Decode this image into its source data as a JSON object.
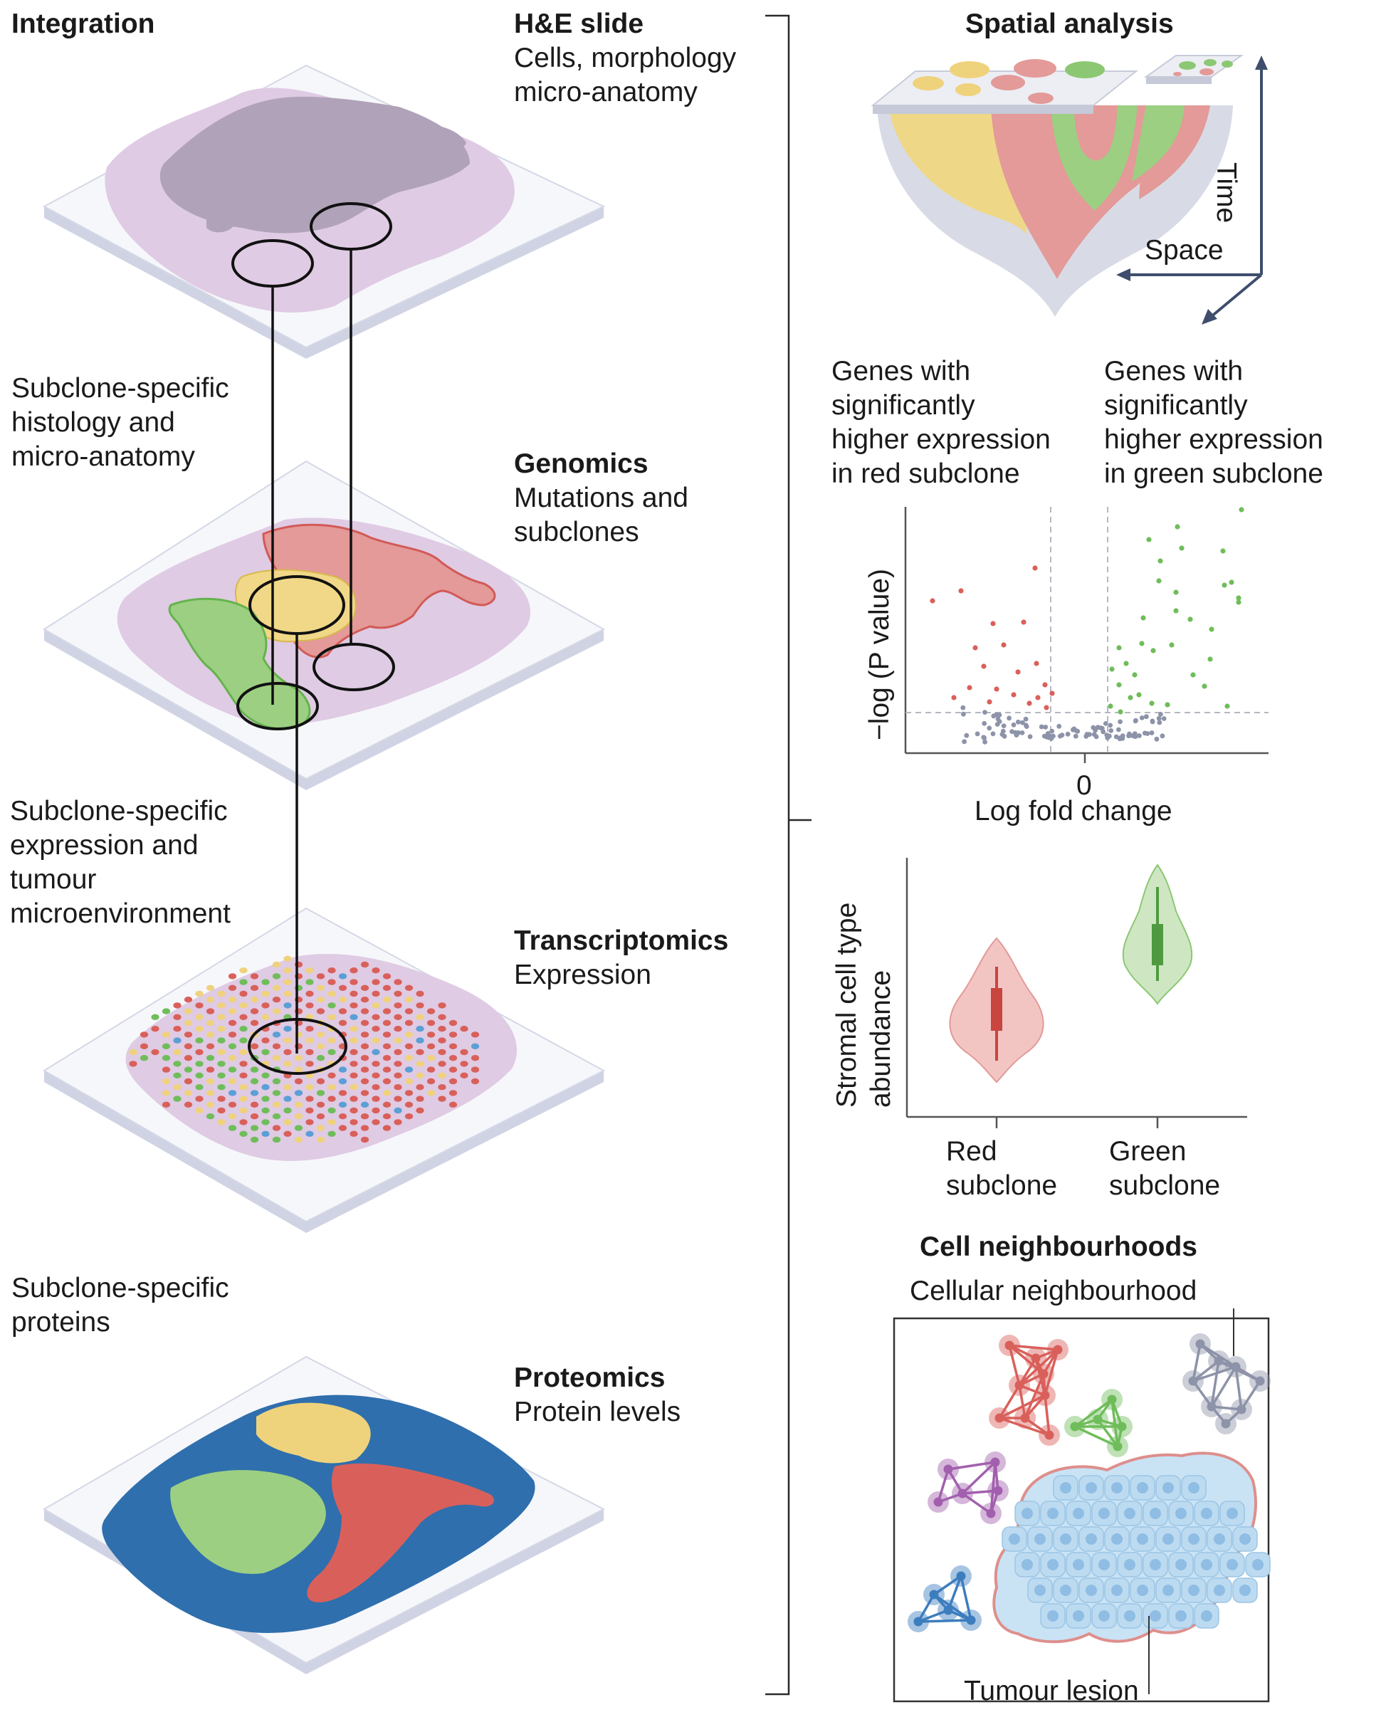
{
  "left": {
    "title": "Integration",
    "note_histology": [
      "Subclone-specific",
      "histology and",
      "micro-anatomy"
    ],
    "note_expression": [
      "Subclone-specific",
      "expression and",
      "tumour",
      "microenvironment"
    ],
    "note_proteins": [
      "Subclone-specific",
      "proteins"
    ]
  },
  "layers": [
    {
      "title": "H&E slide",
      "lines": [
        "Cells, morphology",
        "micro-anatomy"
      ]
    },
    {
      "title": "Genomics",
      "lines": [
        "Mutations and",
        "subclones"
      ]
    },
    {
      "title": "Transcriptomics",
      "lines": [
        "Expression"
      ]
    },
    {
      "title": "Proteomics",
      "lines": [
        "Protein levels"
      ]
    }
  ],
  "spatial": {
    "title": "Spatial analysis",
    "time_label": "Time",
    "space_label": "Space"
  },
  "volcano": {
    "label_left": [
      "Genes with",
      "significantly",
      "higher expression",
      "in red subclone"
    ],
    "label_right": [
      "Genes with",
      "significantly",
      "higher expression",
      "in green subclone"
    ],
    "chart_data": {
      "type": "scatter",
      "xlabel": "Log fold change",
      "ylabel": "−log (P value)",
      "x_ticks": [
        "0"
      ]
    }
  },
  "violin": {
    "chart_data": {
      "type": "violin",
      "categories": [
        "Red subclone",
        "Green subclone"
      ],
      "ylabel": [
        "Stromal cell type",
        "abundance"
      ],
      "category_lines": [
        [
          "Red",
          "subclone"
        ],
        [
          "Green",
          "subclone"
        ]
      ]
    }
  },
  "neighbourhoods": {
    "title": "Cell neighbourhoods",
    "cellular_label": "Cellular neighbourhood",
    "tumour_label": "Tumour lesion"
  },
  "colors": {
    "red": "#d9605a",
    "green": "#6fbd5a",
    "yellow": "#efd27c",
    "purple": "#d9c2dc",
    "blue": "#2f6fad",
    "grey": "#8d93a8",
    "axis": "#3e4e6c"
  }
}
